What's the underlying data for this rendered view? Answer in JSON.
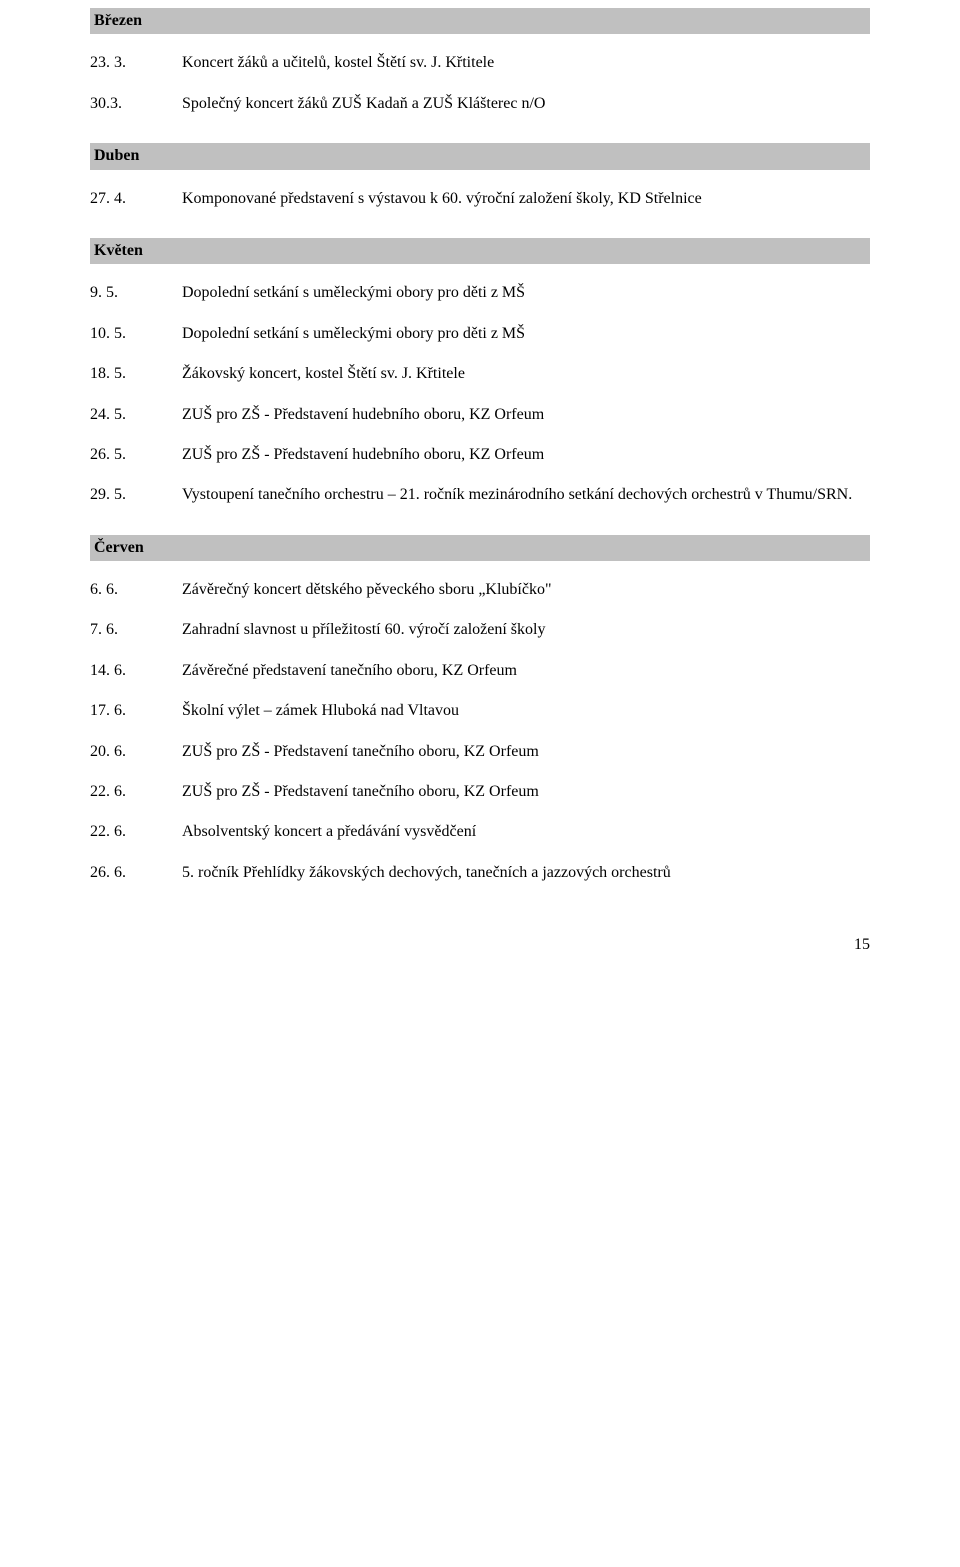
{
  "page_number": "15",
  "months": {
    "brezen": {
      "heading": "Březen",
      "entries": [
        {
          "date": "23. 3.",
          "desc": "Koncert žáků a učitelů, kostel Štětí sv. J. Křtitele"
        },
        {
          "date": "30.3.",
          "desc": "Společný koncert žáků ZUŠ Kadaň a ZUŠ Klášterec n/O"
        }
      ]
    },
    "duben": {
      "heading": "Duben",
      "entries": [
        {
          "date": "27. 4.",
          "desc": "Komponované představení s výstavou k 60. výroční založení školy, KD Střelnice"
        }
      ]
    },
    "kveten": {
      "heading": "Květen",
      "entries": [
        {
          "date": "9. 5.",
          "desc": "Dopolední setkání s uměleckými obory pro děti z MŠ"
        },
        {
          "date": "10. 5.",
          "desc": "Dopolední setkání s uměleckými obory pro děti z MŠ"
        },
        {
          "date": "18. 5.",
          "desc": "Žákovský koncert, kostel Štětí sv. J. Křtitele"
        },
        {
          "date": "24. 5.",
          "desc": "ZUŠ pro ZŠ - Představení hudebního oboru, KZ Orfeum"
        },
        {
          "date": "26. 5.",
          "desc": "ZUŠ pro ZŠ - Představení hudebního oboru, KZ Orfeum"
        },
        {
          "date": "29. 5.",
          "desc": "Vystoupení tanečního orchestru – 21. ročník mezinárodního setkání dechových orchestrů v Thumu/SRN."
        }
      ]
    },
    "cerven": {
      "heading": "Červen",
      "entries": [
        {
          "date": "6. 6.",
          "desc": "Závěrečný koncert dětského pěveckého sboru „Klubíčko\""
        },
        {
          "date": "7. 6.",
          "desc": "Zahradní slavnost u příležitostí 60. výročí založení školy"
        },
        {
          "date": "14. 6.",
          "desc": "Závěrečné představení tanečního oboru, KZ Orfeum"
        },
        {
          "date": "17. 6.",
          "desc": "Školní výlet – zámek Hluboká nad Vltavou"
        },
        {
          "date": "20. 6.",
          "desc": "ZUŠ pro ZŠ - Představení tanečního oboru, KZ Orfeum"
        },
        {
          "date": "22. 6.",
          "desc": "ZUŠ pro ZŠ - Představení tanečního oboru, KZ Orfeum"
        },
        {
          "date": "22. 6.",
          "desc": "Absolventský koncert a předávání vysvědčení"
        },
        {
          "date": "26. 6.",
          "desc": "5. ročník Přehlídky žákovských dechových, tanečních a jazzových orchestrů"
        }
      ]
    }
  }
}
